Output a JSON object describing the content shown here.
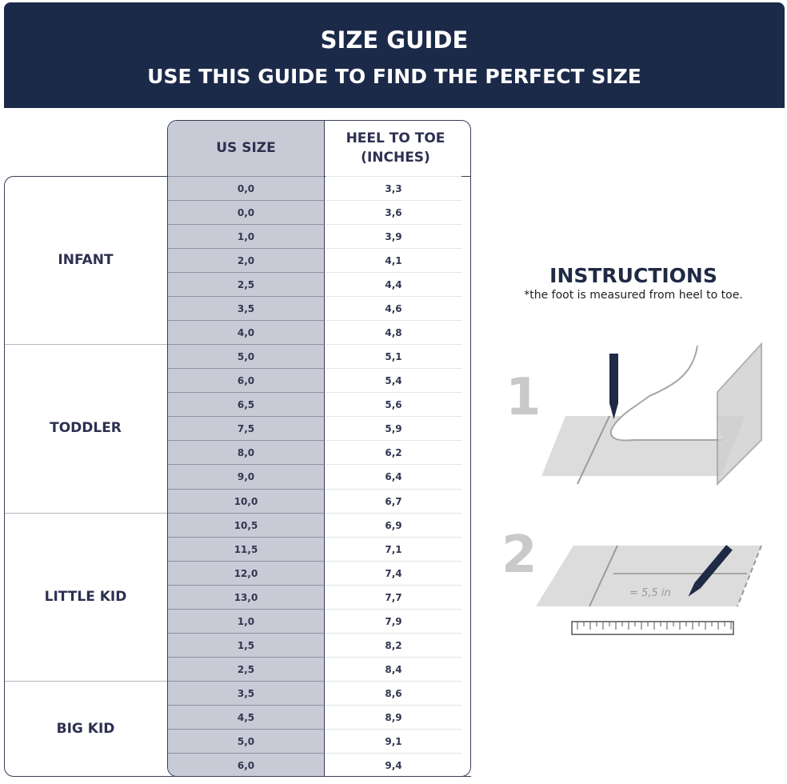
{
  "header": {
    "title": "SIZE GUIDE",
    "subtitle": "USE THIS GUIDE TO FIND THE PERFECT SIZE"
  },
  "table": {
    "columns": [
      "US SIZE",
      "HEEL TO TOE (INCHES)"
    ],
    "rows": [
      [
        "0,0",
        "3,3"
      ],
      [
        "0,0",
        "3,6"
      ],
      [
        "1,0",
        "3,9"
      ],
      [
        "2,0",
        "4,1"
      ],
      [
        "2,5",
        "4,4"
      ],
      [
        "3,5",
        "4,6"
      ],
      [
        "4,0",
        "4,8"
      ],
      [
        "5,0",
        "5,1"
      ],
      [
        "6,0",
        "5,4"
      ],
      [
        "6,5",
        "5,6"
      ],
      [
        "7,5",
        "5,9"
      ],
      [
        "8,0",
        "6,2"
      ],
      [
        "9,0",
        "6,4"
      ],
      [
        "10,0",
        "6,7"
      ],
      [
        "10,5",
        "6,9"
      ],
      [
        "11,5",
        "7,1"
      ],
      [
        "12,0",
        "7,4"
      ],
      [
        "13,0",
        "7,7"
      ],
      [
        "1,0",
        "7,9"
      ],
      [
        "1,5",
        "8,2"
      ],
      [
        "2,5",
        "8,4"
      ],
      [
        "3,5",
        "8,6"
      ],
      [
        "4,5",
        "8,9"
      ],
      [
        "5,0",
        "9,1"
      ],
      [
        "6,0",
        "9,4"
      ]
    ],
    "categories": [
      {
        "label": "INFANT",
        "rows": 7
      },
      {
        "label": "TODDLER",
        "rows": 7
      },
      {
        "label": "LITTLE KID",
        "rows": 7
      },
      {
        "label": "BIG KID",
        "rows": 4
      }
    ]
  },
  "instructions": {
    "title": "INSTRUCTIONS",
    "note": "*the foot is measured from heel to toe.",
    "step1": "1",
    "step2": "2",
    "measure_label": "= 5,5 in"
  },
  "colors": {
    "navy": "#1c2a4a",
    "size_column": "#c8cbd6",
    "illustration_grey": "#d9d9d9"
  }
}
